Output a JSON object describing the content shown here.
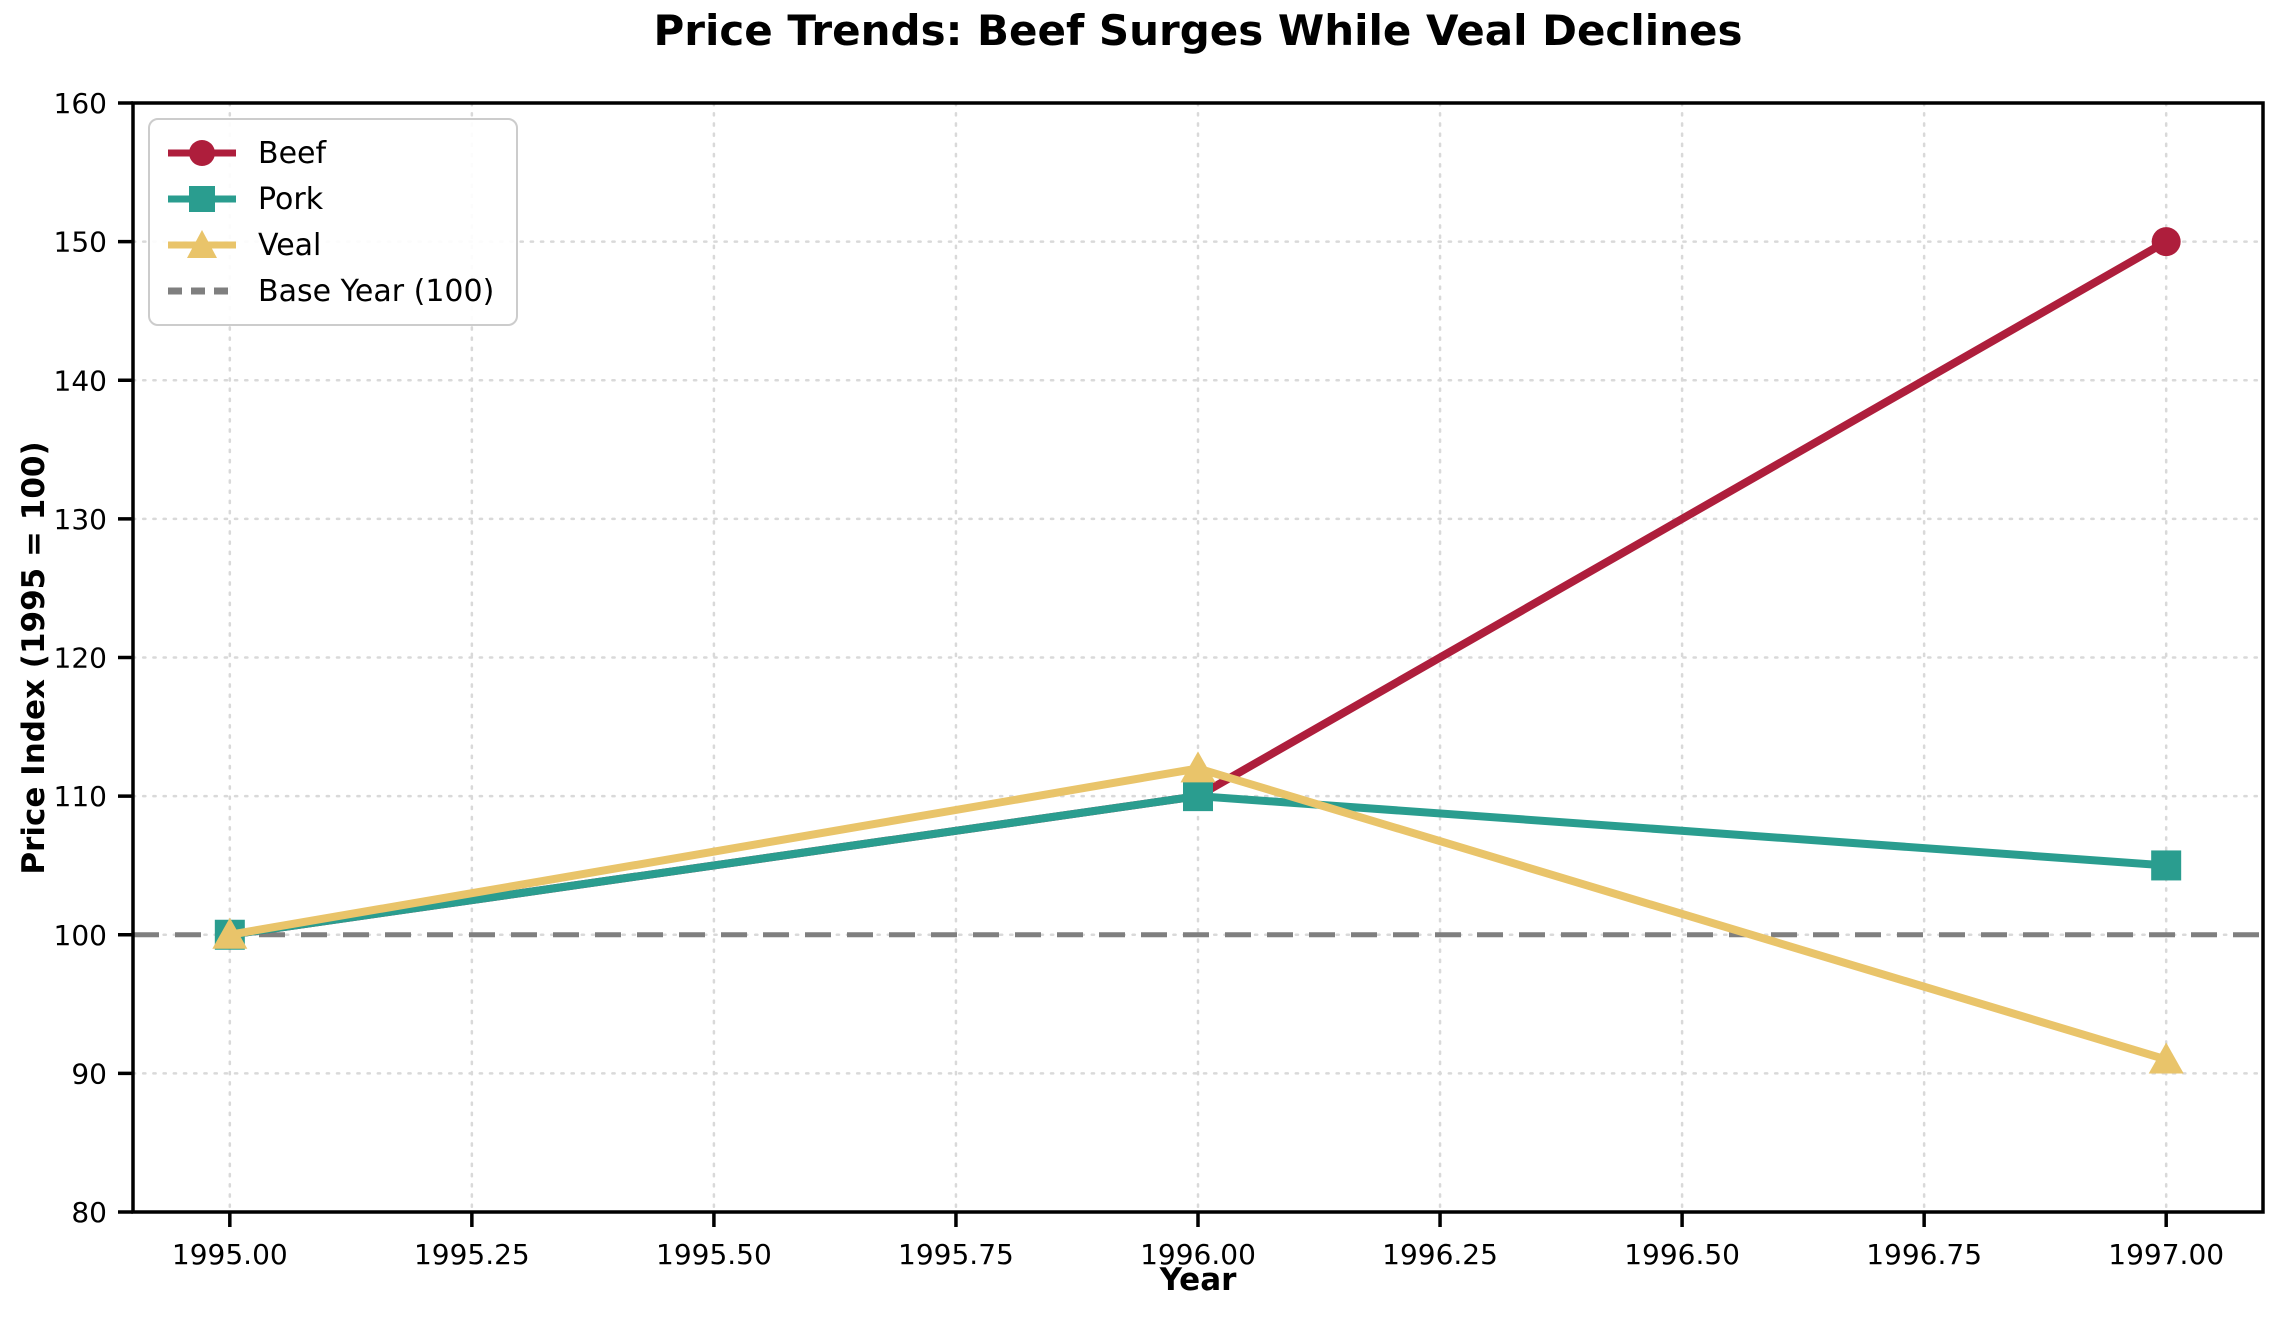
{
  "title": "Price Trends: Beef Surges While Veal Declines",
  "chart_data": {
    "type": "line",
    "title": "Price Trends: Beef Surges While Veal Declines",
    "xlabel": "Year",
    "ylabel": "Price Index (1995 = 100)",
    "x": [
      1995,
      1996,
      1997
    ],
    "series": [
      {
        "name": "Beef",
        "color": "#ae1e3c",
        "marker": "circle",
        "values": [
          100,
          110,
          150
        ]
      },
      {
        "name": "Pork",
        "color": "#2a9d8f",
        "marker": "square",
        "values": [
          100,
          110,
          105
        ]
      },
      {
        "name": "Veal",
        "color": "#e9c46a",
        "marker": "triangle",
        "values": [
          100,
          112,
          91
        ]
      }
    ],
    "baseline": {
      "label": "Base Year (100)",
      "value": 100,
      "color": "#7f7f7f",
      "style": "dashed"
    },
    "xlim": [
      1994.9,
      1997.1
    ],
    "ylim": [
      80,
      160
    ],
    "x_ticks": {
      "values": [
        1995.0,
        1995.25,
        1995.5,
        1995.75,
        1996.0,
        1996.25,
        1996.5,
        1996.75,
        1997.0
      ],
      "labels": [
        "1995.00",
        "1995.25",
        "1995.50",
        "1995.75",
        "1996.00",
        "1996.25",
        "1996.50",
        "1996.75",
        "1997.00"
      ]
    },
    "y_ticks": {
      "values": [
        80,
        90,
        100,
        110,
        120,
        130,
        140,
        150,
        160
      ],
      "labels": [
        "80",
        "90",
        "100",
        "110",
        "120",
        "130",
        "140",
        "150",
        "160"
      ]
    },
    "grid": "dotted",
    "grid_color": "#d9d9d9",
    "spine_color": "#000000",
    "legend_position": "upper-left",
    "legend_entries": [
      "Beef",
      "Pork",
      "Veal",
      "Base Year (100)"
    ]
  }
}
